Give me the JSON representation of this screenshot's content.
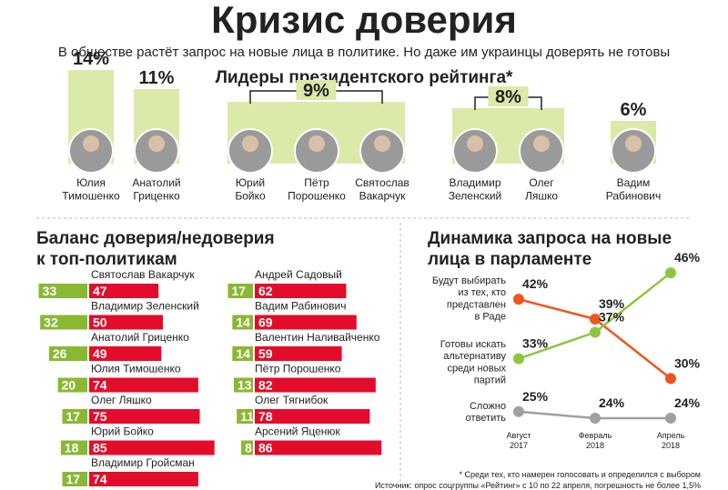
{
  "title": "Кризис доверия",
  "subtitle": "В обществе растёт запрос на новые лица в политике. Но даже им украинцы доверять не готовы",
  "footnote": "* Среди тех, кто намерен голосовать и определился с выбором",
  "source": "Источник: опрос соцгруппы «Рейтинг» с 10 по 22 апреля, погрешность не более 1,5%",
  "chart_data": [
    {
      "type": "bar",
      "title": "Лидеры президентского рейтинга*",
      "color": "#dbe9a9",
      "values": [
        14,
        11,
        9,
        8,
        6
      ],
      "value_labels": [
        "14%",
        "11%",
        "9%",
        "8%",
        "6%"
      ],
      "people": [
        [
          "Юлия\nТимошенко"
        ],
        [
          "Анатолий\nГриценко"
        ],
        [
          "Юрий\nБойко",
          "Пётр\nПорошенко",
          "Святослав\nВакарчук"
        ],
        [
          "Владимир\nЗеленский",
          "Олег\nЛяшко"
        ],
        [
          "Вадим\nРабинович"
        ]
      ]
    },
    {
      "type": "diverging-bar",
      "title": "Баланс доверия/недоверия\nк топ-политикам",
      "categories": [
        "Святослав Вакарчук",
        "Владимир Зеленский",
        "Анатолий Гриценко",
        "Юлия Тимошенко",
        "Олег Ляшко",
        "Юрий Бойко",
        "Владимир Гройсман",
        "Андрей Садовый",
        "Вадим Рабинович",
        "Валентин Наливайченко",
        "Пётр Порошенко",
        "Олег Тягнибок",
        "Арсений Яценюк"
      ],
      "series": [
        {
          "color": "#8ab833",
          "values": [
            33,
            32,
            26,
            20,
            17,
            18,
            17,
            17,
            14,
            14,
            13,
            11,
            8
          ]
        },
        {
          "color": "#e30d2b",
          "values": [
            47,
            50,
            49,
            74,
            75,
            85,
            74,
            62,
            69,
            59,
            82,
            78,
            86
          ]
        }
      ]
    },
    {
      "type": "line",
      "title": "Динамика запроса на новые\nлица в парламенте",
      "categories": [
        "Август\n2017",
        "Февраль\n2018",
        "Апрель\n2018"
      ],
      "series": [
        {
          "name": "Будут выбирать\nиз тех, кто\nпредставлен\nв Раде",
          "color": "#f0541e",
          "values": [
            42,
            39,
            30
          ],
          "value_labels": [
            "42%",
            "39%",
            "30%"
          ]
        },
        {
          "name": "Готовы искать\nальтернативу\nсреди новых\nпартий",
          "color": "#8ec63f",
          "values": [
            33,
            37,
            46
          ],
          "value_labels": [
            "33%",
            "37%",
            "46%"
          ]
        },
        {
          "name": "Сложно\nответить",
          "color": "#a0a0a0",
          "values": [
            25,
            24,
            24
          ],
          "value_labels": [
            "25%",
            "24%",
            "24%"
          ]
        }
      ]
    }
  ]
}
